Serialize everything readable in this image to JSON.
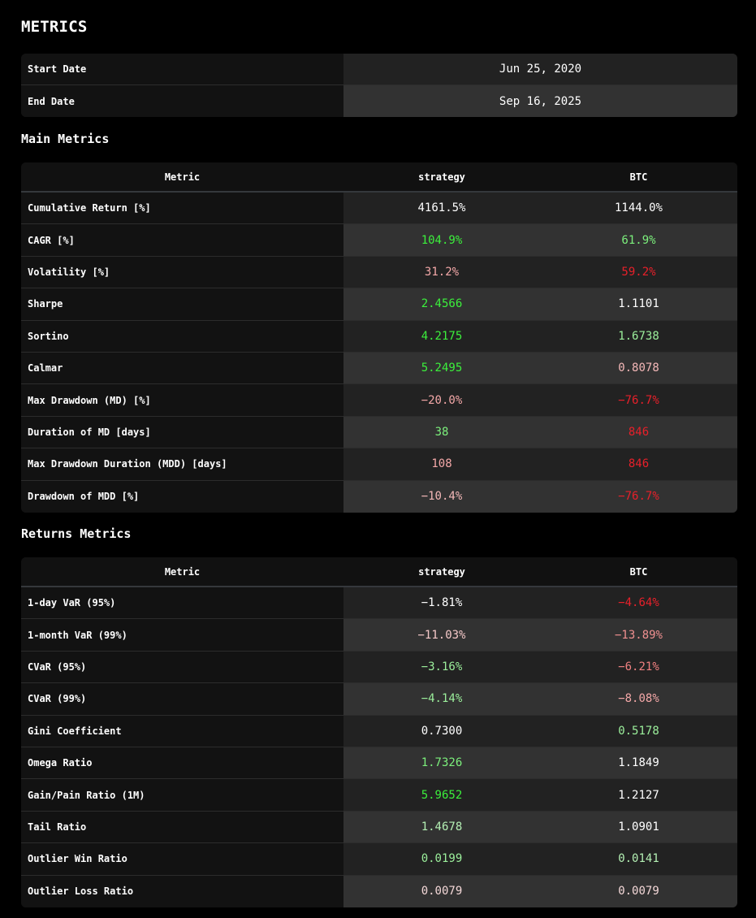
{
  "page": {
    "title": "METRICS"
  },
  "dates": {
    "rows": [
      {
        "label": "Start Date",
        "value": "Jun 25, 2020"
      },
      {
        "label": "End Date",
        "value": "Sep 16, 2025"
      }
    ]
  },
  "main_metrics": {
    "title": "Main Metrics",
    "headers": [
      "Metric",
      "strategy",
      "BTC"
    ],
    "rows": [
      {
        "label": "Cumulative Return [%]",
        "strategy": "4161.5%",
        "btc": "1144.0%",
        "strategy_color": "#ffffff",
        "btc_color": "#ffffff"
      },
      {
        "label": "CAGR [%]",
        "strategy": "104.9%",
        "btc": "61.9%",
        "strategy_color": "#3cf03c",
        "btc_color": "#7cf07c"
      },
      {
        "label": "Volatility [%]",
        "strategy": "31.2%",
        "btc": "59.2%",
        "strategy_color": "#f4a8a8",
        "btc_color": "#e8202a"
      },
      {
        "label": "Sharpe",
        "strategy": "2.4566",
        "btc": "1.1101",
        "strategy_color": "#3cf03c",
        "btc_color": "#ffffff"
      },
      {
        "label": "Sortino",
        "strategy": "4.2175",
        "btc": "1.6738",
        "strategy_color": "#3cf03c",
        "btc_color": "#9cf09c"
      },
      {
        "label": "Calmar",
        "strategy": "5.2495",
        "btc": "0.8078",
        "strategy_color": "#3cf03c",
        "btc_color": "#f4b8b8"
      },
      {
        "label": "Max Drawdown (MD) [%]",
        "strategy": "−20.0%",
        "btc": "−76.7%",
        "strategy_color": "#f4a8a8",
        "btc_color": "#e8202a"
      },
      {
        "label": "Duration of MD [days]",
        "strategy": "38",
        "btc": "846",
        "strategy_color": "#7cf07c",
        "btc_color": "#e8202a"
      },
      {
        "label": "Max Drawdown Duration (MDD) [days]",
        "strategy": "108",
        "btc": "846",
        "strategy_color": "#f4a8a8",
        "btc_color": "#e8202a"
      },
      {
        "label": "Drawdown of MDD [%]",
        "strategy": "−10.4%",
        "btc": "−76.7%",
        "strategy_color": "#f4b8b8",
        "btc_color": "#e8202a"
      }
    ]
  },
  "returns_metrics": {
    "title": "Returns Metrics",
    "headers": [
      "Metric",
      "strategy",
      "BTC"
    ],
    "rows": [
      {
        "label": "1-day VaR (95%)",
        "strategy": "−1.81%",
        "btc": "−4.64%",
        "strategy_color": "#ffffff",
        "btc_color": "#e8202a"
      },
      {
        "label": "1-month VaR (99%)",
        "strategy": "−11.03%",
        "btc": "−13.89%",
        "strategy_color": "#f4c8c8",
        "btc_color": "#f09090"
      },
      {
        "label": "CVaR (95%)",
        "strategy": "−3.16%",
        "btc": "−6.21%",
        "strategy_color": "#9cf09c",
        "btc_color": "#f08080"
      },
      {
        "label": "CVaR (99%)",
        "strategy": "−4.14%",
        "btc": "−8.08%",
        "strategy_color": "#9cf09c",
        "btc_color": "#f4a8a8"
      },
      {
        "label": "Gini Coefficient",
        "strategy": "0.7300",
        "btc": "0.5178",
        "strategy_color": "#ffffff",
        "btc_color": "#9cf09c"
      },
      {
        "label": "Omega Ratio",
        "strategy": "1.7326",
        "btc": "1.1849",
        "strategy_color": "#7cf07c",
        "btc_color": "#ffffff"
      },
      {
        "label": "Gain/Pain Ratio (1M)",
        "strategy": "5.9652",
        "btc": "1.2127",
        "strategy_color": "#3cf03c",
        "btc_color": "#ffffff"
      },
      {
        "label": "Tail Ratio",
        "strategy": "1.4678",
        "btc": "1.0901",
        "strategy_color": "#b4f0b4",
        "btc_color": "#ffffff"
      },
      {
        "label": "Outlier Win Ratio",
        "strategy": "0.0199",
        "btc": "0.0141",
        "strategy_color": "#9cf09c",
        "btc_color": "#b4f0b4"
      },
      {
        "label": "Outlier Loss Ratio",
        "strategy": "0.0079",
        "btc": "0.0079",
        "strategy_color": "#f4d8d8",
        "btc_color": "#f4d8d8"
      }
    ]
  }
}
